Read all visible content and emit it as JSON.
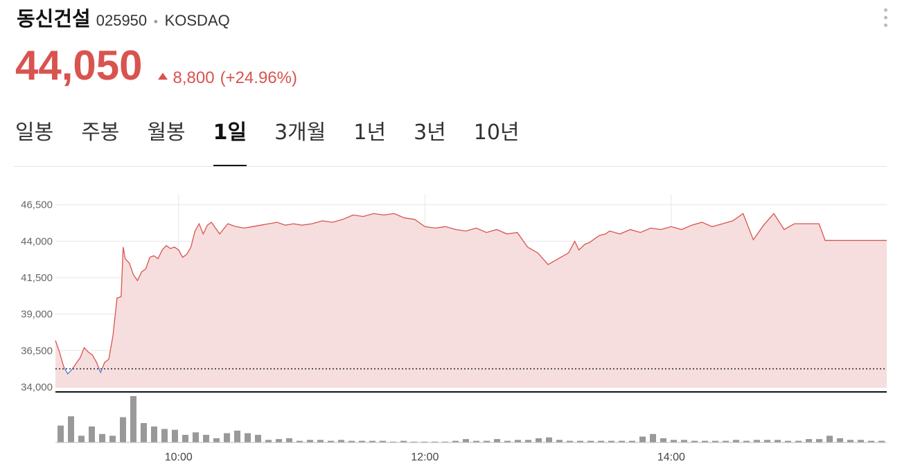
{
  "stock": {
    "name": "동신건설",
    "code": "025950",
    "market": "KOSDAQ",
    "price": "44,050",
    "change": "8,800",
    "change_pct": "(+24.96%)",
    "direction_icon": "triangle-up-icon",
    "more_icon": "more-vertical-icon"
  },
  "tabs": [
    {
      "label": "일봉",
      "active": false
    },
    {
      "label": "주봉",
      "active": false
    },
    {
      "label": "월봉",
      "active": false
    },
    {
      "label": "1일",
      "active": true
    },
    {
      "label": "3개월",
      "active": false
    },
    {
      "label": "1년",
      "active": false
    },
    {
      "label": "3년",
      "active": false
    },
    {
      "label": "10년",
      "active": false
    }
  ],
  "colors": {
    "up": "#d9534f",
    "down": "#4a7fd4",
    "area_fill": "#f6dede",
    "volume": "#999999"
  },
  "chart_data": {
    "type": "line",
    "title": "",
    "xlabel": "",
    "ylabel": "",
    "x_ticks": [
      "10:00",
      "12:00",
      "14:00"
    ],
    "y_ticks": [
      34000,
      36500,
      39000,
      41500,
      44000,
      46500
    ],
    "y_tick_labels": [
      "34,000",
      "36,500",
      "39,000",
      "41,500",
      "44,000",
      "46,500"
    ],
    "ylim": [
      33950,
      47200
    ],
    "xlim": [
      "09:00",
      "15:45"
    ],
    "previous_close": 35250,
    "grid": true,
    "series": [
      {
        "x": [
          "09:00",
          "09:02",
          "09:04",
          "09:06",
          "09:08",
          "09:10",
          "09:12",
          "09:14",
          "09:16",
          "09:18",
          "09:20",
          "09:22",
          "09:24",
          "09:26",
          "09:28",
          "09:30",
          "09:32",
          "09:33",
          "09:34",
          "09:36",
          "09:38",
          "09:40",
          "09:42",
          "09:44",
          "09:46",
          "09:48",
          "09:50",
          "09:52",
          "09:54",
          "09:56",
          "09:58",
          "10:00",
          "10:02",
          "10:04",
          "10:06",
          "10:08",
          "10:10",
          "10:12",
          "10:14",
          "10:16",
          "10:20",
          "10:24",
          "10:28",
          "10:32",
          "10:36",
          "10:40",
          "10:44",
          "10:48",
          "10:52",
          "10:56",
          "11:00",
          "11:05",
          "11:10",
          "11:15",
          "11:20",
          "11:25",
          "11:30",
          "11:35",
          "11:40",
          "11:45",
          "11:50",
          "11:55",
          "12:00",
          "12:05",
          "12:10",
          "12:15",
          "12:20",
          "12:25",
          "12:30",
          "12:35",
          "12:40",
          "12:45",
          "12:50",
          "12:55",
          "13:00",
          "13:05",
          "13:10",
          "13:13",
          "13:15",
          "13:18",
          "13:20",
          "13:23",
          "13:25",
          "13:28",
          "13:30",
          "13:35",
          "13:40",
          "13:45",
          "13:50",
          "13:55",
          "14:00",
          "14:05",
          "14:10",
          "14:15",
          "14:20",
          "14:25",
          "14:30",
          "14:35",
          "14:40",
          "14:45",
          "14:50",
          "14:55",
          "15:00",
          "15:02",
          "15:05",
          "15:10",
          "15:12",
          "15:15",
          "15:20",
          "15:45"
        ],
        "y": [
          37200,
          36400,
          35400,
          34900,
          35200,
          35600,
          36000,
          36700,
          36400,
          36200,
          35700,
          35000,
          35700,
          35900,
          37500,
          40100,
          40200,
          43600,
          42800,
          42500,
          41700,
          41300,
          41900,
          42100,
          42900,
          43000,
          42800,
          43400,
          43700,
          43500,
          43600,
          43400,
          42900,
          43100,
          43600,
          44700,
          45200,
          44500,
          45100,
          45300,
          44500,
          45200,
          45000,
          44900,
          45000,
          45100,
          45200,
          45300,
          45100,
          45200,
          45100,
          45200,
          45400,
          45300,
          45500,
          45800,
          45700,
          45900,
          45800,
          45900,
          45600,
          45500,
          45000,
          44900,
          45000,
          44800,
          44700,
          44900,
          44600,
          44800,
          44500,
          44600,
          43600,
          43200,
          42400,
          42800,
          43200,
          44000,
          43400,
          43800,
          43900,
          44200,
          44400,
          44500,
          44700,
          44500,
          44800,
          44600,
          44900,
          44800,
          45000,
          44800,
          45100,
          45300,
          45000,
          45200,
          45400,
          45900,
          44100,
          45100,
          45900,
          44800,
          45200,
          45200,
          45200,
          45200,
          45200,
          44050,
          44050,
          44050
        ]
      }
    ],
    "volume": [
      20,
      31,
      8,
      19,
      10,
      8,
      30,
      55,
      23,
      19,
      16,
      15,
      9,
      12,
      9,
      5,
      11,
      14,
      11,
      9,
      3,
      4,
      5,
      2,
      3,
      3,
      2,
      3,
      2,
      2,
      2,
      2,
      1,
      2,
      1,
      1,
      1,
      1,
      2,
      4,
      2,
      2,
      4,
      2,
      3,
      3,
      5,
      6,
      3,
      2,
      2,
      2,
      2,
      2,
      2,
      2,
      7,
      10,
      5,
      3,
      3,
      2,
      2,
      2,
      2,
      3,
      2,
      3,
      3,
      3,
      2,
      2,
      4,
      4,
      8,
      5,
      3,
      3,
      2,
      2
    ]
  }
}
